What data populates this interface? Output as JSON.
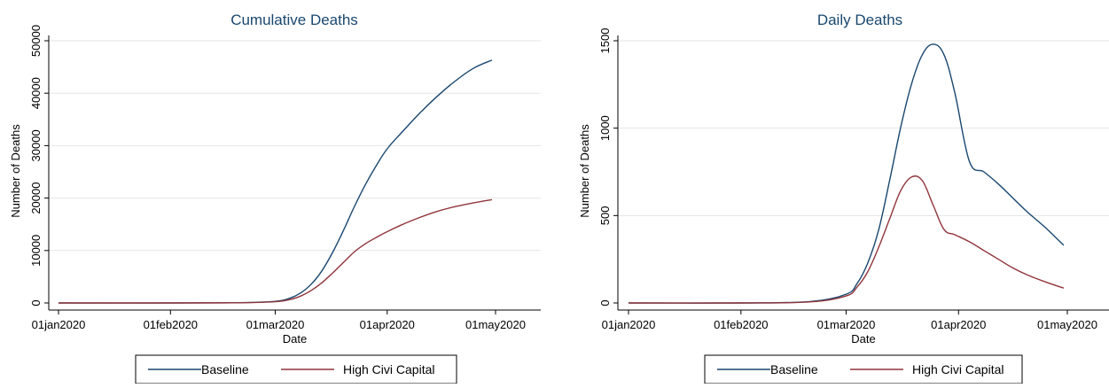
{
  "chart_data": [
    {
      "type": "line",
      "title": "Cumulative Deaths",
      "xlabel": "Date",
      "ylabel": "Number of Deaths",
      "x_ticks": [
        "01jan2020",
        "01feb2020",
        "01mar2020",
        "01apr2020",
        "01may2020"
      ],
      "y_ticks": [
        "0",
        "10000",
        "20000",
        "30000",
        "40000",
        "50000"
      ],
      "y_tick_values": [
        0,
        10000,
        20000,
        30000,
        40000,
        50000
      ],
      "ylim": [
        0,
        52000
      ],
      "xlim": [
        "2020-01-01",
        "2020-05-01"
      ],
      "grid": true,
      "legend": "bottom",
      "series": [
        {
          "name": "Baseline",
          "color": "#1a476f",
          "x": [
            "2020-01-01",
            "2020-02-01",
            "2020-02-20",
            "2020-03-01",
            "2020-03-05",
            "2020-03-08",
            "2020-03-11",
            "2020-03-14",
            "2020-03-17",
            "2020-03-20",
            "2020-03-23",
            "2020-03-26",
            "2020-03-29",
            "2020-04-01",
            "2020-04-05",
            "2020-04-10",
            "2020-04-15",
            "2020-04-20",
            "2020-04-25",
            "2020-04-30"
          ],
          "values": [
            0,
            0,
            50,
            300,
            900,
            1900,
            3600,
            6200,
            9800,
            14000,
            18500,
            22600,
            26200,
            29400,
            32500,
            36200,
            39500,
            42400,
            44800,
            46300
          ]
        },
        {
          "name": "High Civi Capital",
          "color": "#90353b",
          "x": [
            "2020-01-01",
            "2020-02-01",
            "2020-02-20",
            "2020-03-01",
            "2020-03-05",
            "2020-03-08",
            "2020-03-11",
            "2020-03-14",
            "2020-03-17",
            "2020-03-20",
            "2020-03-23",
            "2020-03-26",
            "2020-03-29",
            "2020-04-01",
            "2020-04-05",
            "2020-04-10",
            "2020-04-15",
            "2020-04-20",
            "2020-04-25",
            "2020-04-30"
          ],
          "values": [
            0,
            0,
            40,
            230,
            650,
            1300,
            2400,
            3900,
            5800,
            7800,
            9800,
            11300,
            12500,
            13600,
            14900,
            16300,
            17500,
            18400,
            19100,
            19700
          ]
        }
      ]
    },
    {
      "type": "line",
      "title": "Daily Deaths",
      "xlabel": "Date",
      "ylabel": "Number of Deaths",
      "x_ticks": [
        "01jan2020",
        "01feb2020",
        "01mar2020",
        "01apr2020",
        "01may2020"
      ],
      "y_ticks": [
        "0",
        "500",
        "1000",
        "1500"
      ],
      "y_tick_values": [
        0,
        500,
        1000,
        1500
      ],
      "ylim": [
        0,
        1560
      ],
      "xlim": [
        "2020-01-01",
        "2020-05-01"
      ],
      "grid": true,
      "legend": "bottom",
      "series": [
        {
          "name": "Baseline",
          "color": "#1a476f",
          "x": [
            "2020-01-01",
            "2020-02-01",
            "2020-02-20",
            "2020-03-01",
            "2020-03-04",
            "2020-03-07",
            "2020-03-10",
            "2020-03-13",
            "2020-03-16",
            "2020-03-19",
            "2020-03-22",
            "2020-03-25",
            "2020-03-28",
            "2020-03-31",
            "2020-04-04",
            "2020-04-08",
            "2020-04-12",
            "2020-04-16",
            "2020-04-20",
            "2020-04-25",
            "2020-04-30"
          ],
          "values": [
            0,
            0,
            8,
            50,
            110,
            230,
            420,
            700,
            1000,
            1250,
            1420,
            1480,
            1420,
            1200,
            810,
            750,
            680,
            600,
            520,
            430,
            330
          ]
        },
        {
          "name": "High Civi Capital",
          "color": "#90353b",
          "x": [
            "2020-01-01",
            "2020-02-01",
            "2020-02-20",
            "2020-03-01",
            "2020-03-04",
            "2020-03-07",
            "2020-03-10",
            "2020-03-13",
            "2020-03-16",
            "2020-03-19",
            "2020-03-22",
            "2020-03-25",
            "2020-03-28",
            "2020-03-31",
            "2020-04-04",
            "2020-04-08",
            "2020-04-12",
            "2020-04-16",
            "2020-04-20",
            "2020-04-25",
            "2020-04-30"
          ],
          "values": [
            0,
            0,
            6,
            40,
            90,
            180,
            320,
            480,
            640,
            720,
            700,
            560,
            420,
            390,
            350,
            300,
            250,
            200,
            160,
            120,
            85
          ]
        }
      ]
    }
  ]
}
